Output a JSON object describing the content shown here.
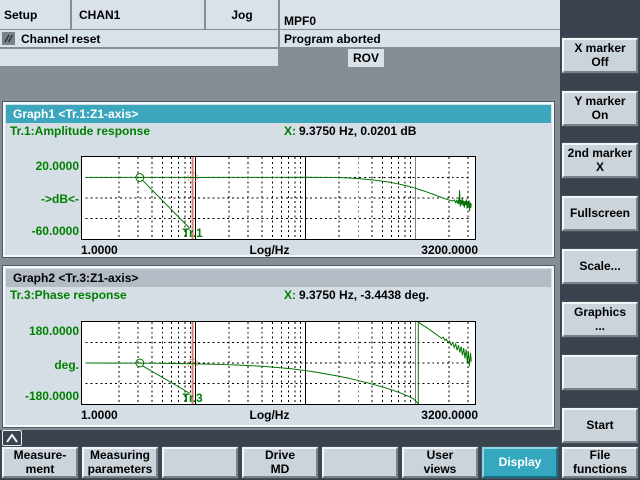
{
  "header": {
    "area": "Setup",
    "channel": "CHAN1",
    "mode": "Jog",
    "program": "MPF0",
    "channel_status": "Channel reset",
    "program_status": "Program aborted",
    "rov": "ROV"
  },
  "graph1": {
    "title": "Graph1 <Tr.1:Z1-axis>",
    "trace_name": "Tr.1:Amplitude response",
    "marker_prefix": "X:",
    "marker_value": "9.3750 Hz, 0.0201 dB",
    "y_top": "20.0000",
    "y_mid": "->dB<-",
    "y_bottom": "-60.0000",
    "x_left": "1.0000",
    "x_mid": "Log/Hz",
    "x_right": "3200.0000"
  },
  "graph2": {
    "title": "Graph2 <Tr.3:Z1-axis>",
    "trace_name": "Tr.3:Phase response",
    "marker_prefix": "X:",
    "marker_value": "9.3750 Hz, -3.4438 deg.",
    "y_top": "180.0000",
    "y_mid": "deg.",
    "y_bottom": "-180.0000",
    "x_left": "1.0000",
    "x_mid": "Log/Hz",
    "x_right": "3200.0000"
  },
  "softkeys_right": [
    "X marker\nOff",
    "Y marker\nOn",
    "2nd marker\nX",
    "Fullscreen",
    "Scale...",
    "Graphics\n...",
    "",
    "Start"
  ],
  "softkeys_bottom": [
    "Measure-\nment",
    "Measuring\nparameters",
    "",
    "Drive\nMD",
    "",
    "User\nviews",
    "Display",
    "File\nfunctions"
  ],
  "active_softkey": "Display",
  "icons": {
    "recall": "chevron-up-icon",
    "channel_reset": "slashes-icon"
  },
  "colors": {
    "accent_teal": "#3ba6bc",
    "header_light": "#d9e1e9",
    "panel_dark": "#3a434d",
    "softkey_face": "#cbd3db",
    "label_green": "#008000",
    "trace_green": "#007300",
    "marker_red": "#d9806c",
    "graph2_titlebar": "#b3bbc5"
  },
  "chart_data": [
    {
      "type": "line",
      "title": "Tr.1:Amplitude response",
      "xlabel": "Log/Hz",
      "ylabel": "dB",
      "x_axis": {
        "scale": "log",
        "min": 1,
        "max": 3200,
        "solid_gridlines": [
          10,
          100,
          1000
        ]
      },
      "y_axis": {
        "min": -60,
        "max": 20,
        "dashed_gridlines": [
          0,
          -20,
          -40
        ]
      },
      "marker": {
        "f": 9.375,
        "value": 0.0201,
        "label": "X: 9.3750 Hz, 0.0201 dB",
        "color": "#d9806c"
      },
      "tag": {
        "text": "Tr.1",
        "f": 3.1
      },
      "color": "#007300",
      "points": [
        [
          1,
          0.2
        ],
        [
          1.6,
          0.1
        ],
        [
          2.5,
          0.2
        ],
        [
          4,
          0.1
        ],
        [
          6,
          0.15
        ],
        [
          8,
          0.05
        ],
        [
          9.375,
          0.02
        ],
        [
          13,
          0.1
        ],
        [
          18,
          0.05
        ],
        [
          25,
          0.15
        ],
        [
          35,
          0.05
        ],
        [
          50,
          0.2
        ],
        [
          70,
          0.1
        ],
        [
          100,
          0.25
        ],
        [
          130,
          0.1
        ],
        [
          160,
          0.2
        ],
        [
          200,
          0
        ],
        [
          250,
          -0.5
        ],
        [
          300,
          -1.1
        ],
        [
          360,
          -1.8
        ],
        [
          430,
          -2.7
        ],
        [
          500,
          -3.6
        ],
        [
          580,
          -4.7
        ],
        [
          660,
          -5.8
        ],
        [
          750,
          -7
        ],
        [
          850,
          -8.4
        ],
        [
          950,
          -9.8
        ],
        [
          1050,
          -11.3
        ],
        [
          1150,
          -12.7
        ],
        [
          1250,
          -14
        ],
        [
          1350,
          -15.3
        ],
        [
          1450,
          -16.5
        ],
        [
          1550,
          -17.7
        ],
        [
          1650,
          -18.8
        ],
        [
          1750,
          -19.8
        ],
        [
          1850,
          -20.8
        ],
        [
          1950,
          -21.6
        ],
        [
          2050,
          -22.3
        ],
        [
          2150,
          -23
        ],
        [
          2250,
          -22
        ],
        [
          2300,
          -24.5
        ],
        [
          2350,
          -22.5
        ],
        [
          2400,
          -25.5
        ],
        [
          2440,
          -21.5
        ],
        [
          2470,
          -26
        ],
        [
          2505,
          -12.5
        ],
        [
          2540,
          -28.5
        ],
        [
          2575,
          -22
        ],
        [
          2610,
          -26.5
        ],
        [
          2650,
          -20.5
        ],
        [
          2690,
          -27.5
        ],
        [
          2730,
          -22.5
        ],
        [
          2770,
          -29.5
        ],
        [
          2810,
          -23
        ],
        [
          2850,
          -27
        ],
        [
          2890,
          -21.5
        ],
        [
          2930,
          -30.5
        ],
        [
          2970,
          -24
        ],
        [
          3010,
          -27.5
        ],
        [
          3050,
          -22.5
        ],
        [
          3090,
          -33
        ],
        [
          3130,
          -24.5
        ],
        [
          3165,
          -29.5
        ],
        [
          3200,
          -25.5
        ]
      ]
    },
    {
      "type": "line",
      "title": "Tr.3:Phase response",
      "xlabel": "Log/Hz",
      "ylabel": "deg.",
      "x_axis": {
        "scale": "log",
        "min": 1,
        "max": 3200,
        "solid_gridlines": [
          10,
          100,
          1000
        ]
      },
      "y_axis": {
        "min": -180,
        "max": 180,
        "dashed_gridlines": [
          90,
          0,
          -90
        ]
      },
      "marker": {
        "f": 9.375,
        "value": -3.4438,
        "label": "X: 9.3750 Hz, -3.4438 deg.",
        "color": "#d9806c"
      },
      "tag": {
        "text": "Tr.3",
        "f": 3.1
      },
      "color": "#007300",
      "points": [
        [
          1,
          -0.2
        ],
        [
          2,
          -0.5
        ],
        [
          3,
          -0.9
        ],
        [
          4.5,
          -1.4
        ],
        [
          6.5,
          -2.2
        ],
        [
          9.375,
          -3.44
        ],
        [
          13,
          -5
        ],
        [
          18,
          -6.8
        ],
        [
          24,
          -9
        ],
        [
          32,
          -11.8
        ],
        [
          42,
          -15.2
        ],
        [
          55,
          -19.5
        ],
        [
          72,
          -25
        ],
        [
          95,
          -32
        ],
        [
          120,
          -39
        ],
        [
          150,
          -47
        ],
        [
          190,
          -56
        ],
        [
          240,
          -66
        ],
        [
          300,
          -77
        ],
        [
          370,
          -88
        ],
        [
          450,
          -99
        ],
        [
          540,
          -110
        ],
        [
          640,
          -122
        ],
        [
          750,
          -134
        ],
        [
          860,
          -146
        ],
        [
          950,
          -157
        ],
        [
          1010,
          -169
        ],
        [
          1045,
          -178
        ],
        [
          1055,
          -180
        ],
        [
          1055,
          180
        ],
        [
          1090,
          175
        ],
        [
          1150,
          167
        ],
        [
          1250,
          156
        ],
        [
          1350,
          145
        ],
        [
          1450,
          134
        ],
        [
          1550,
          124
        ],
        [
          1650,
          115
        ],
        [
          1720,
          108
        ],
        [
          1780,
          113
        ],
        [
          1840,
          99
        ],
        [
          1900,
          105
        ],
        [
          1960,
          90
        ],
        [
          2030,
          97
        ],
        [
          2100,
          78
        ],
        [
          2170,
          90
        ],
        [
          2240,
          68
        ],
        [
          2310,
          84
        ],
        [
          2380,
          56
        ],
        [
          2450,
          78
        ],
        [
          2520,
          46
        ],
        [
          2590,
          72
        ],
        [
          2660,
          34
        ],
        [
          2730,
          66
        ],
        [
          2800,
          20
        ],
        [
          2870,
          60
        ],
        [
          2940,
          4
        ],
        [
          3010,
          52
        ],
        [
          3080,
          -14
        ],
        [
          3145,
          44
        ],
        [
          3200,
          6
        ]
      ]
    }
  ]
}
